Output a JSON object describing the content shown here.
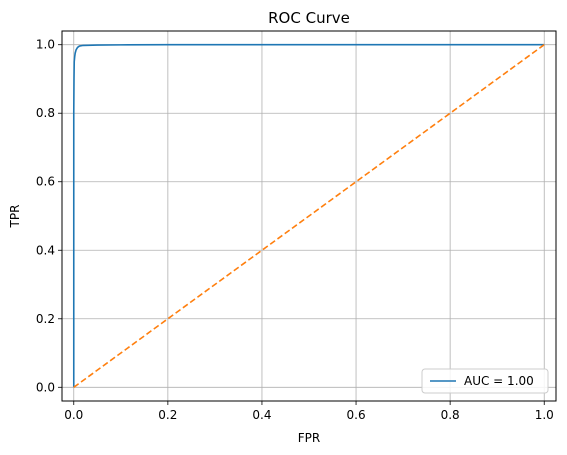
{
  "chart_data": {
    "type": "line",
    "title": "ROC Curve",
    "xlabel": "FPR",
    "ylabel": "TPR",
    "xlim": [
      -0.025,
      1.025
    ],
    "ylim": [
      -0.04,
      1.04
    ],
    "xticks": [
      0.0,
      0.2,
      0.4,
      0.6,
      0.8,
      1.0
    ],
    "yticks": [
      0.0,
      0.2,
      0.4,
      0.6,
      0.8,
      1.0
    ],
    "xtick_labels": [
      "0.0",
      "0.2",
      "0.4",
      "0.6",
      "0.8",
      "1.0"
    ],
    "ytick_labels": [
      "0.0",
      "0.2",
      "0.4",
      "0.6",
      "0.8",
      "1.0"
    ],
    "grid": true,
    "legend_position": "lower-right",
    "series": [
      {
        "name": "AUC = 1.00",
        "color": "#1f77b4",
        "style": "solid",
        "x": [
          0.0,
          0.0,
          0.0005,
          0.001,
          0.002,
          0.003,
          0.005,
          0.008,
          0.012,
          0.02,
          0.05,
          0.1,
          0.2,
          0.4,
          0.6,
          0.8,
          1.0
        ],
        "y": [
          0.0,
          0.8,
          0.9,
          0.95,
          0.965,
          0.975,
          0.985,
          0.992,
          0.996,
          0.998,
          0.999,
          0.9995,
          1.0,
          1.0,
          1.0,
          1.0,
          1.0
        ]
      },
      {
        "name": "",
        "color": "#ff7f0e",
        "style": "dashed",
        "x": [
          0.0,
          1.0
        ],
        "y": [
          0.0,
          1.0
        ]
      }
    ]
  }
}
